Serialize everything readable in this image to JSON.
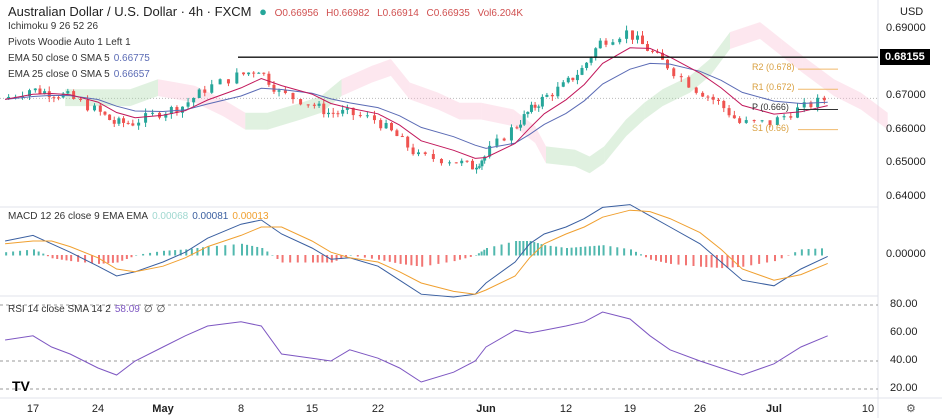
{
  "header": {
    "symbol": "Australian Dollar / U.S. Dollar · 4h · FXCM",
    "open": "O0.66956",
    "high": "H0.66982",
    "low": "L0.66914",
    "close": "C0.66935",
    "volume": "Vol6.204K",
    "currency": "USD"
  },
  "indicators": {
    "ichimoku": "Ichimoku 9 26 52 26",
    "pivots": "Pivots Woodie Auto 1 Left 1",
    "ema50": "EMA 50 close 0 SMA 5",
    "ema50_val": "0.66775",
    "ema25": "EMA 25 close 0 SMA 5",
    "ema25_val": "0.66657",
    "macd": "MACD 12 26 close 9 EMA EMA",
    "macd_v1": "0.00068",
    "macd_v2": "0.00081",
    "macd_v3": "0.00013",
    "rsi": "RSI 14 close SMA 14 2",
    "rsi_v": "58.09",
    "rsi_n1": "∅",
    "rsi_n2": "∅"
  },
  "colors": {
    "up": "#26a69a",
    "down": "#ef5350",
    "ema50": "#5b6bb5",
    "ema25": "#c2185b",
    "signal": "#f0a030",
    "pivot": "#f0b96b",
    "rsi": "#7e57c2"
  },
  "chart_data": {
    "type": "candlestick",
    "price_axis": {
      "ticks": [
        "0.69000",
        "0.67000",
        "0.66000",
        "0.65000",
        "0.64000"
      ],
      "ylim": [
        0.638,
        0.692
      ],
      "highlighted": "0.68155"
    },
    "resistance_line": 0.68155,
    "pivots": [
      {
        "label": "R2 (0.678)",
        "value": 0.678
      },
      {
        "label": "R1 (0.672)",
        "value": 0.672
      },
      {
        "label": "P (0.666)",
        "value": 0.666
      },
      {
        "label": "S1 (0.66)",
        "value": 0.66
      }
    ],
    "x_ticks": [
      "17",
      "24",
      "May",
      "8",
      "15",
      "22",
      "Jun",
      "12",
      "19",
      "26",
      "Jul",
      "10"
    ],
    "series": {
      "dates": [
        "2023-04-14",
        "2023-04-17",
        "2023-04-19",
        "2023-04-21",
        "2023-04-24",
        "2023-04-26",
        "2023-04-28",
        "2023-05-01",
        "2023-05-03",
        "2023-05-05",
        "2023-05-08",
        "2023-05-10",
        "2023-05-12",
        "2023-05-15",
        "2023-05-17",
        "2023-05-19",
        "2023-05-22",
        "2023-05-24",
        "2023-05-26",
        "2023-05-29",
        "2023-05-31",
        "2023-06-01",
        "2023-06-05",
        "2023-06-07",
        "2023-06-09",
        "2023-06-12",
        "2023-06-14",
        "2023-06-16",
        "2023-06-19",
        "2023-06-21",
        "2023-06-23",
        "2023-06-26",
        "2023-06-28",
        "2023-06-30",
        "2023-07-03",
        "2023-07-05",
        "2023-07-07"
      ],
      "close": [
        0.669,
        0.672,
        0.671,
        0.67,
        0.666,
        0.662,
        0.662,
        0.665,
        0.667,
        0.672,
        0.676,
        0.678,
        0.671,
        0.668,
        0.665,
        0.665,
        0.663,
        0.658,
        0.652,
        0.651,
        0.649,
        0.652,
        0.66,
        0.665,
        0.669,
        0.673,
        0.678,
        0.686,
        0.689,
        0.684,
        0.679,
        0.672,
        0.668,
        0.662,
        0.662,
        0.666,
        0.669
      ],
      "macd": [
        0.001,
        0.0014,
        0.0008,
        0.0002,
        -0.0008,
        -0.0015,
        -0.0012,
        -0.0005,
        0.0002,
        0.0012,
        0.0022,
        0.0025,
        0.0015,
        0.0005,
        -0.0003,
        -0.0002,
        -0.0008,
        -0.0018,
        -0.0028,
        -0.003,
        -0.0028,
        -0.002,
        -0.0005,
        0.0008,
        0.0015,
        0.002,
        0.0026,
        0.0034,
        0.0036,
        0.0028,
        0.002,
        0.0008,
        -0.0005,
        -0.0018,
        -0.0022,
        -0.001,
        -0.0001
      ],
      "signal": [
        0.0008,
        0.001,
        0.001,
        0.0006,
        -0.0002,
        -0.001,
        -0.0012,
        -0.0008,
        -0.0002,
        0.0006,
        0.0014,
        0.002,
        0.002,
        0.001,
        0.0002,
        -0.0002,
        -0.0005,
        -0.0012,
        -0.002,
        -0.0026,
        -0.0028,
        -0.0025,
        -0.0015,
        -0.0002,
        0.0008,
        0.0015,
        0.002,
        0.0027,
        0.0032,
        0.0031,
        0.0026,
        0.0016,
        0.0004,
        -0.001,
        -0.0018,
        -0.0014,
        -0.0006
      ],
      "rsi": [
        55,
        58,
        50,
        45,
        35,
        30,
        40,
        50,
        58,
        65,
        68,
        65,
        45,
        42,
        40,
        48,
        42,
        35,
        25,
        32,
        40,
        50,
        62,
        60,
        62,
        65,
        68,
        75,
        70,
        58,
        48,
        40,
        35,
        30,
        38,
        50,
        58
      ]
    },
    "macd_axis": {
      "ticks": [
        "0.00000"
      ]
    },
    "rsi_axis": {
      "ticks": [
        "80.00",
        "60.00",
        "40.00",
        "20.00"
      ]
    }
  }
}
